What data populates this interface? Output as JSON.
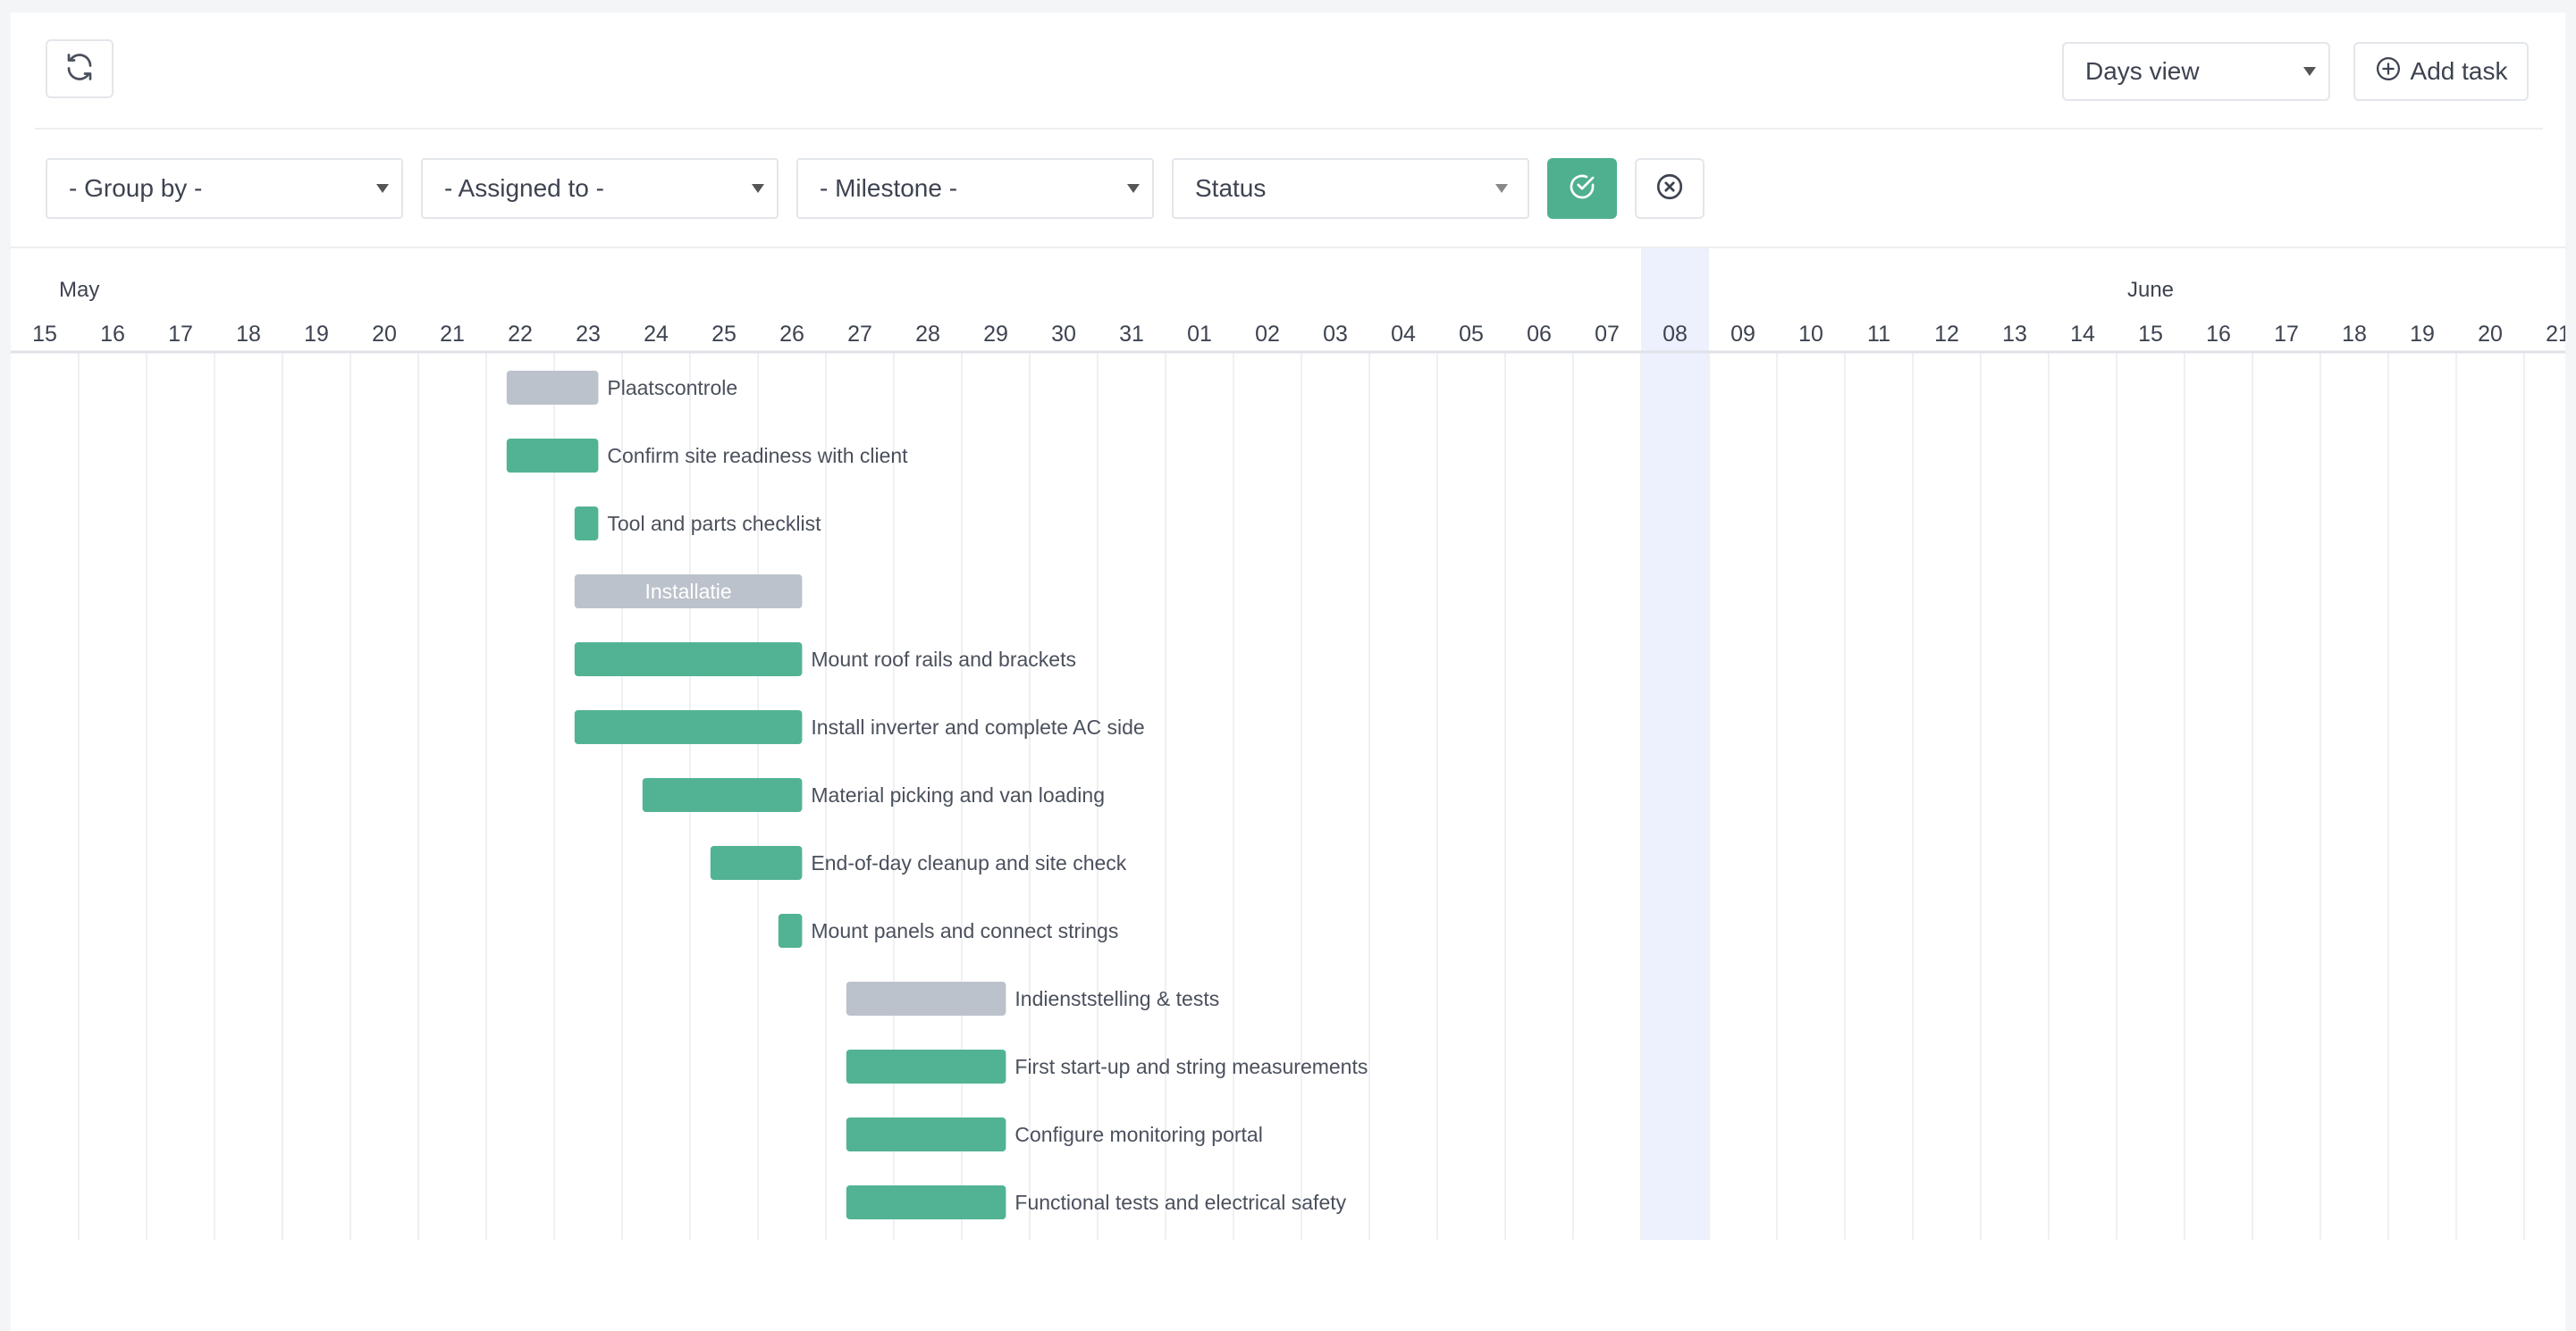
{
  "toolbar": {
    "view_select": "Days view",
    "add_task_label": "Add task"
  },
  "filters": {
    "group_by": "- Group by -",
    "assigned_to": "- Assigned to -",
    "milestone": "- Milestone -",
    "status": "Status"
  },
  "timeline": {
    "months": [
      {
        "label": "May",
        "day_index": 0
      },
      {
        "label": "June",
        "day_index": 31
      }
    ],
    "days": [
      "15",
      "16",
      "17",
      "18",
      "19",
      "20",
      "21",
      "22",
      "23",
      "24",
      "25",
      "26",
      "27",
      "28",
      "29",
      "30",
      "31",
      "01",
      "02",
      "03",
      "04",
      "05",
      "06",
      "07",
      "08",
      "09",
      "10",
      "11",
      "12",
      "13",
      "14",
      "15",
      "16",
      "17",
      "18",
      "19",
      "20",
      "21"
    ],
    "today_index": 24
  },
  "tasks": [
    {
      "name": "Plaatscontrole",
      "start": 7.3,
      "duration": 1.35,
      "type": "group"
    },
    {
      "name": "Confirm site readiness with client",
      "start": 7.3,
      "duration": 1.35,
      "type": "task"
    },
    {
      "name": "Tool and parts checklist",
      "start": 8.3,
      "duration": 0.35,
      "type": "task"
    },
    {
      "name": "Installatie",
      "start": 8.3,
      "duration": 3.35,
      "type": "group",
      "label_inside": true
    },
    {
      "name": "Mount roof rails and brackets",
      "start": 8.3,
      "duration": 3.35,
      "type": "task"
    },
    {
      "name": "Install inverter and complete AC side",
      "start": 8.3,
      "duration": 3.35,
      "type": "task"
    },
    {
      "name": "Material picking and van loading",
      "start": 9.3,
      "duration": 2.35,
      "type": "task"
    },
    {
      "name": "End-of-day cleanup and site check",
      "start": 10.3,
      "duration": 1.35,
      "type": "task"
    },
    {
      "name": "Mount panels and connect strings",
      "start": 11.3,
      "duration": 0.35,
      "type": "task"
    },
    {
      "name": "Indienststelling & tests",
      "start": 12.3,
      "duration": 2.35,
      "type": "group"
    },
    {
      "name": "First start-up and string measurements",
      "start": 12.3,
      "duration": 2.35,
      "type": "task"
    },
    {
      "name": "Configure monitoring portal",
      "start": 12.3,
      "duration": 2.35,
      "type": "task"
    },
    {
      "name": "Functional tests and electrical safety",
      "start": 12.3,
      "duration": 2.35,
      "type": "task"
    }
  ],
  "colors": {
    "task_bar": "#52b394",
    "group_bar": "#bcc2cb",
    "today_highlight": "#edf0fd",
    "grid_line": "#eff0f2",
    "apply_button": "#4eb08f"
  }
}
